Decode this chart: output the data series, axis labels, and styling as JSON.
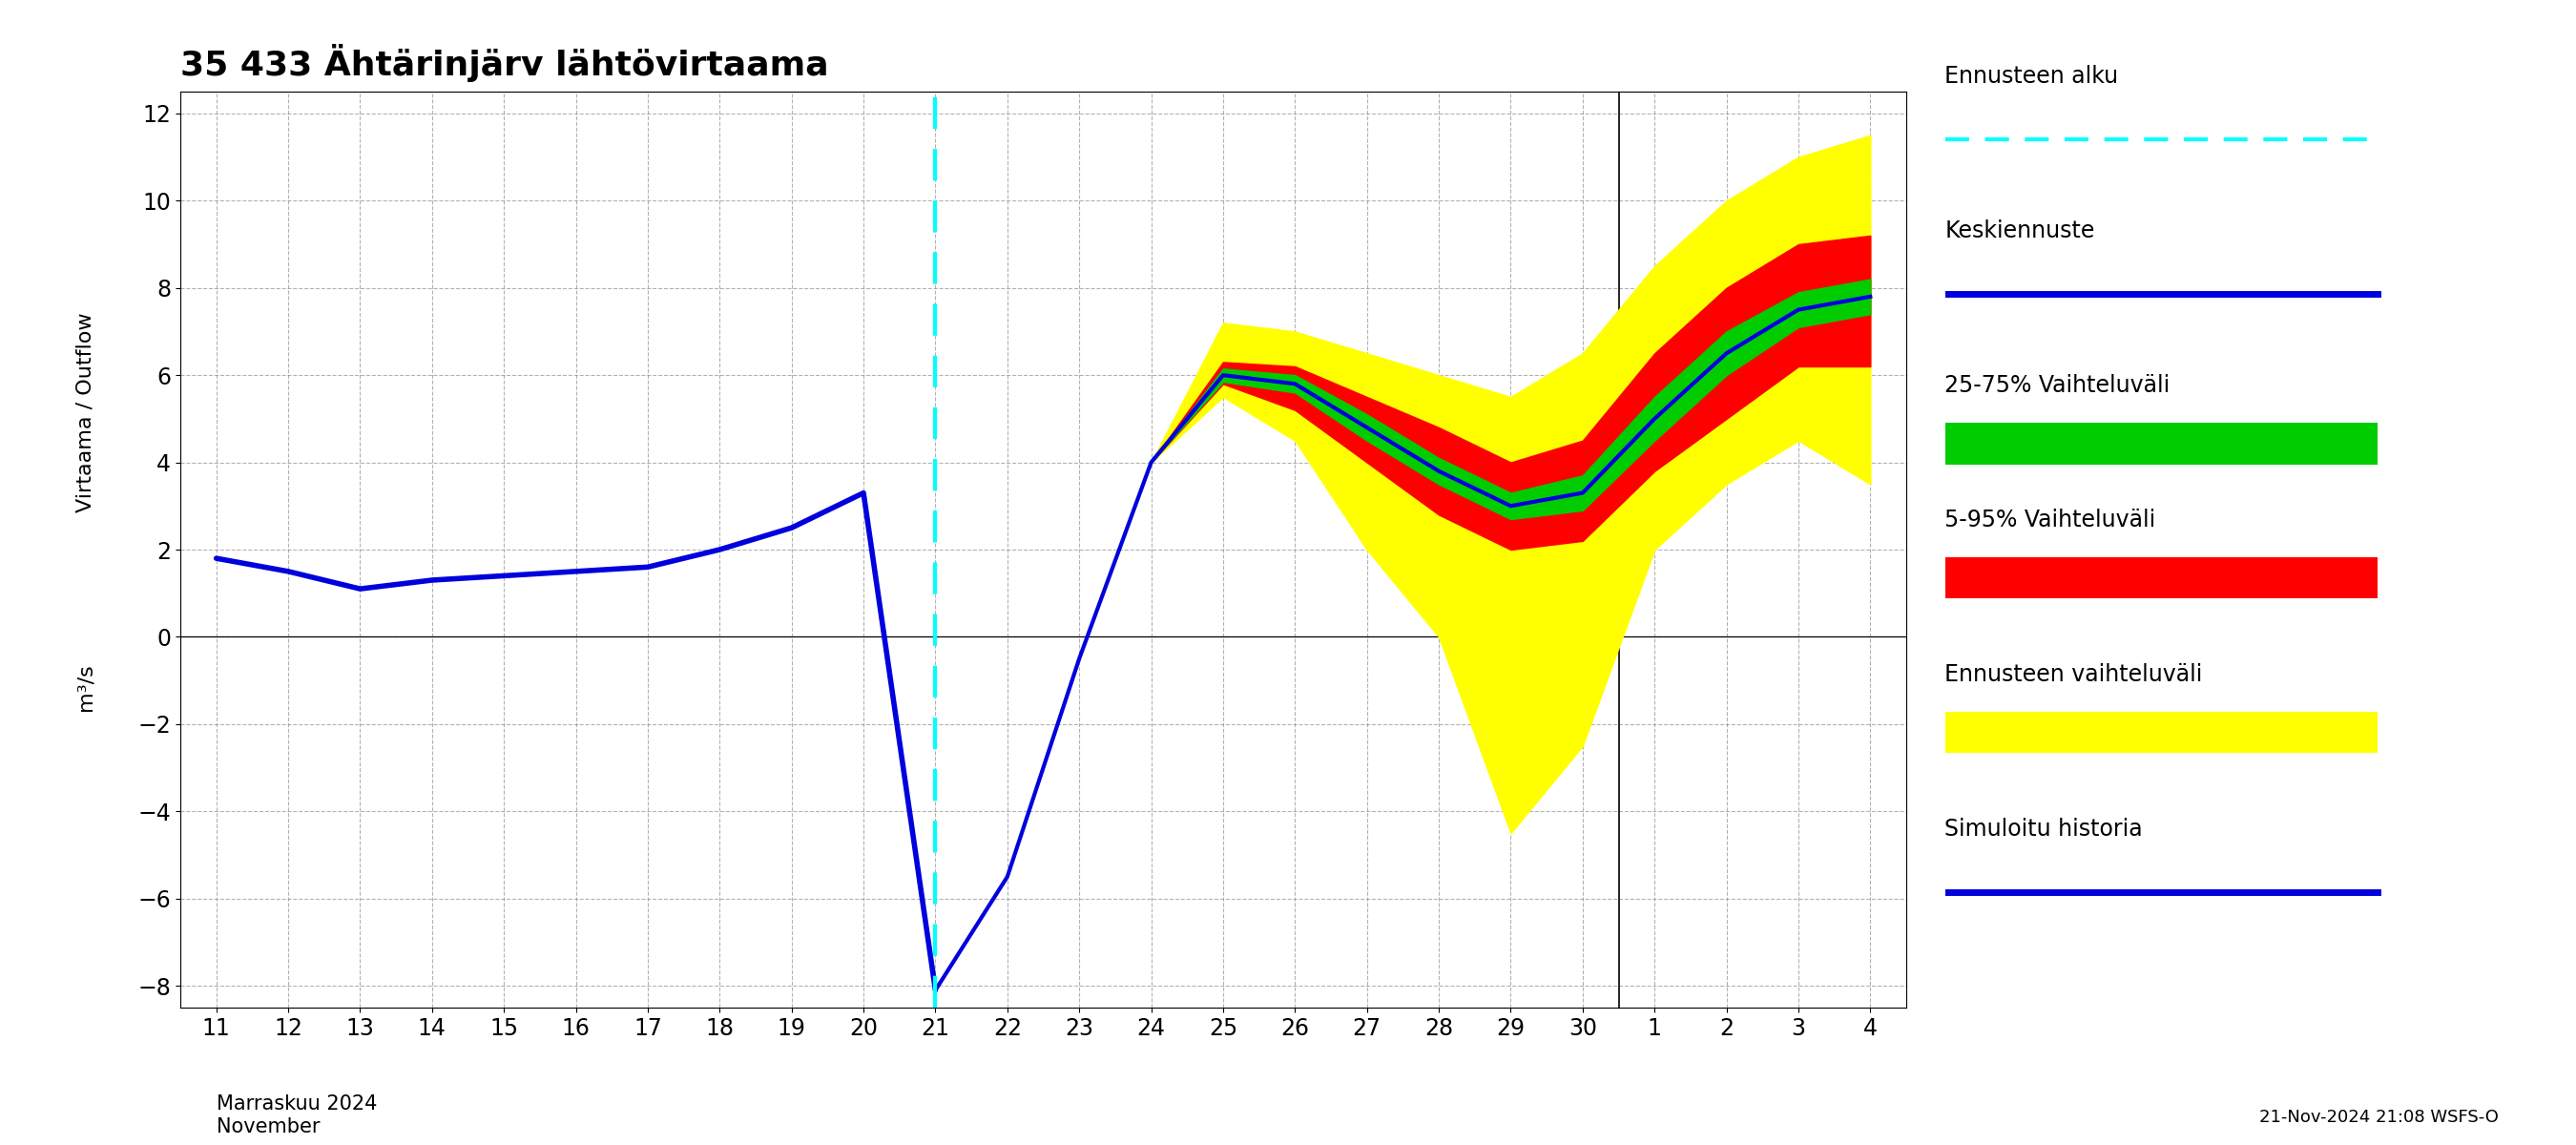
{
  "title": "35 433 Ähtärinjärv lähtövirtaama",
  "ylabel": "Virtaama / Outflow",
  "ylabel2": "m³/s",
  "xlabel_month": "Marraskuu 2024\nNovember",
  "footnote": "21-Nov-2024 21:08 WSFS-O",
  "ylim": [
    -8.5,
    12.5
  ],
  "yticks": [
    -8,
    -6,
    -4,
    -2,
    0,
    2,
    4,
    6,
    8,
    10,
    12
  ],
  "forecast_start_x": 21,
  "cyan_line_color": "#00FFFF",
  "history_color": "#0000DD",
  "median_color": "#0000DD",
  "band_yellow": "#FFFF00",
  "band_red": "#FF0000",
  "band_green": "#00CC00",
  "legend_entries": [
    "Ennusteen alku",
    "Keskiennuste",
    "25-75% Vaihteluväli",
    "5-95% Vaihteluväli",
    "Ennusteen vaihteluväli",
    "Simuloitu historia"
  ],
  "history_x": [
    11,
    12,
    13,
    14,
    15,
    16,
    17,
    18,
    19,
    20,
    21
  ],
  "history_y": [
    1.8,
    1.5,
    1.1,
    1.3,
    1.4,
    1.5,
    1.6,
    2.0,
    2.5,
    3.3,
    -8.1
  ],
  "median_x": [
    21,
    22,
    23,
    24,
    25,
    26,
    27,
    28,
    29,
    30,
    31,
    32,
    33,
    34
  ],
  "median_y": [
    -8.1,
    -5.5,
    -0.5,
    4.0,
    6.0,
    5.8,
    4.8,
    3.8,
    3.0,
    3.3,
    5.0,
    6.5,
    7.5,
    7.8
  ],
  "p95_upper_x": [
    21,
    22,
    23,
    24,
    25,
    26,
    27,
    28,
    29,
    30,
    31,
    32,
    33,
    34
  ],
  "p95_upper_y": [
    -8.1,
    -5.5,
    -0.5,
    4.0,
    7.2,
    7.0,
    6.5,
    6.0,
    5.5,
    6.5,
    8.5,
    10.0,
    11.0,
    11.5
  ],
  "p5_lower_x": [
    21,
    22,
    23,
    24,
    25,
    26,
    27,
    28,
    29,
    30,
    31,
    32,
    33,
    34
  ],
  "p5_lower_y": [
    -8.1,
    -5.5,
    -0.5,
    4.0,
    5.5,
    4.5,
    2.0,
    0.0,
    -4.5,
    -2.5,
    2.0,
    3.5,
    4.5,
    3.5
  ],
  "p75_upper_x": [
    21,
    22,
    23,
    24,
    25,
    26,
    27,
    28,
    29,
    30,
    31,
    32,
    33,
    34
  ],
  "p75_upper_y": [
    -8.1,
    -5.5,
    -0.5,
    4.0,
    6.3,
    6.2,
    5.5,
    4.8,
    4.0,
    4.5,
    6.5,
    8.0,
    9.0,
    9.2
  ],
  "p25_lower_x": [
    21,
    22,
    23,
    24,
    25,
    26,
    27,
    28,
    29,
    30,
    31,
    32,
    33,
    34
  ],
  "p25_lower_y": [
    -8.1,
    -5.5,
    -0.5,
    4.0,
    5.8,
    5.2,
    4.0,
    2.8,
    2.0,
    2.2,
    3.8,
    5.0,
    6.2,
    6.2
  ],
  "green_upper_x": [
    21,
    22,
    23,
    24,
    25,
    26,
    27,
    28,
    29,
    30,
    31,
    32,
    33,
    34
  ],
  "green_upper_y": [
    -8.1,
    -5.5,
    -0.5,
    4.0,
    6.15,
    6.0,
    5.1,
    4.1,
    3.3,
    3.7,
    5.5,
    7.0,
    7.9,
    8.2
  ],
  "green_lower_x": [
    21,
    22,
    23,
    24,
    25,
    26,
    27,
    28,
    29,
    30,
    31,
    32,
    33,
    34
  ],
  "green_lower_y": [
    -8.1,
    -5.5,
    -0.5,
    4.0,
    5.85,
    5.6,
    4.5,
    3.5,
    2.7,
    2.9,
    4.5,
    6.0,
    7.1,
    7.4
  ],
  "xtick_positions": [
    11,
    12,
    13,
    14,
    15,
    16,
    17,
    18,
    19,
    20,
    21,
    22,
    23,
    24,
    25,
    26,
    27,
    28,
    29,
    30,
    31,
    32,
    33,
    34
  ],
  "xtick_labels": [
    "11",
    "12",
    "13",
    "14",
    "15",
    "16",
    "17",
    "18",
    "19",
    "20",
    "21",
    "22",
    "23",
    "24",
    "25",
    "26",
    "27",
    "28",
    "29",
    "30",
    "1",
    "2",
    "3",
    "4"
  ]
}
